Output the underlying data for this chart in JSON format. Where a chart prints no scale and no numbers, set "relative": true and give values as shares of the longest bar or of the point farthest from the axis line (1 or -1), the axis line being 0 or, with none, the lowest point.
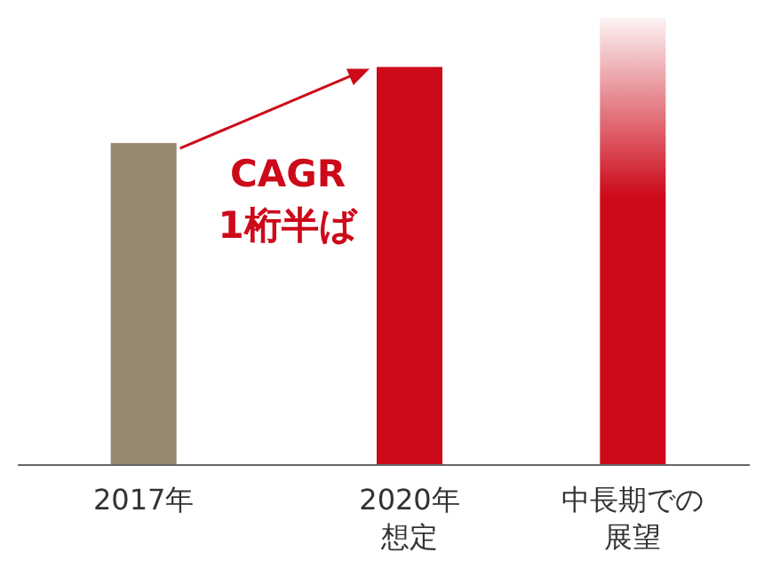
{
  "chart_data": {
    "type": "bar",
    "relative": true,
    "categories": [
      "2017年",
      "2020年想定",
      "中長期での展望"
    ],
    "values": [
      0.72,
      0.89,
      1
    ],
    "colors": [
      "#978870",
      "#cc0a1a",
      "#cc0a1a"
    ],
    "annotations": [
      "CAGR\n1桁半ば"
    ]
  }
}
